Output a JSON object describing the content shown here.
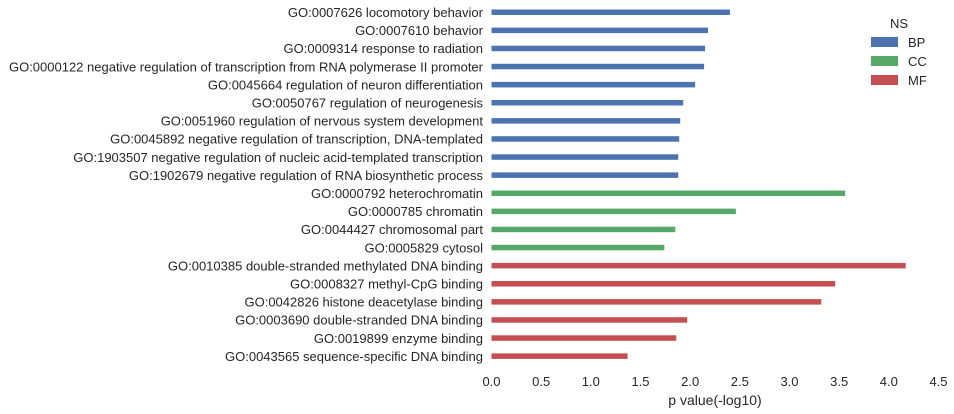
{
  "chart_data": {
    "type": "bar",
    "orientation": "horizontal",
    "xlabel": "p value(-log10)",
    "xlim": [
      0.0,
      4.5
    ],
    "xticks": [
      "0.0",
      "0.5",
      "1.0",
      "1.5",
      "2.0",
      "2.5",
      "3.0",
      "3.5",
      "4.0",
      "4.5"
    ],
    "grid": false,
    "legend": {
      "title": "NS",
      "placement": "top-right",
      "items": [
        {
          "name": "BP",
          "color": "#4C72B0"
        },
        {
          "name": "CC",
          "color": "#55A868"
        },
        {
          "name": "MF",
          "color": "#C44E52"
        }
      ]
    },
    "bars": [
      {
        "label": "GO:0007626 locomotory behavior",
        "value": 2.4,
        "ns": "BP"
      },
      {
        "label": "GO:0007610 behavior",
        "value": 2.18,
        "ns": "BP"
      },
      {
        "label": "GO:0009314 response to radiation",
        "value": 2.15,
        "ns": "BP"
      },
      {
        "label": "GO:0000122 negative regulation of transcription from RNA polymerase II promoter",
        "value": 2.14,
        "ns": "BP"
      },
      {
        "label": "GO:0045664 regulation of neuron differentiation",
        "value": 2.05,
        "ns": "BP"
      },
      {
        "label": "GO:0050767 regulation of neurogenesis",
        "value": 1.93,
        "ns": "BP"
      },
      {
        "label": "GO:0051960 regulation of nervous system development",
        "value": 1.9,
        "ns": "BP"
      },
      {
        "label": "GO:0045892 negative regulation of transcription, DNA-templated",
        "value": 1.89,
        "ns": "BP"
      },
      {
        "label": "GO:1903507 negative regulation of nucleic acid-templated transcription",
        "value": 1.88,
        "ns": "BP"
      },
      {
        "label": "GO:1902679 negative regulation of RNA biosynthetic process",
        "value": 1.88,
        "ns": "BP"
      },
      {
        "label": "GO:0000792 heterochromatin",
        "value": 3.56,
        "ns": "CC"
      },
      {
        "label": "GO:0000785 chromatin",
        "value": 2.46,
        "ns": "CC"
      },
      {
        "label": "GO:0044427 chromosomal part",
        "value": 1.85,
        "ns": "CC"
      },
      {
        "label": "GO:0005829 cytosol",
        "value": 1.74,
        "ns": "CC"
      },
      {
        "label": "GO:0010385 double-stranded methylated DNA binding",
        "value": 4.17,
        "ns": "MF"
      },
      {
        "label": "GO:0008327 methyl-CpG binding",
        "value": 3.46,
        "ns": "MF"
      },
      {
        "label": "GO:0042826 histone deacetylase binding",
        "value": 3.32,
        "ns": "MF"
      },
      {
        "label": "GO:0003690 double-stranded DNA binding",
        "value": 1.97,
        "ns": "MF"
      },
      {
        "label": "GO:0019899 enzyme binding",
        "value": 1.86,
        "ns": "MF"
      },
      {
        "label": "GO:0043565 sequence-specific DNA binding",
        "value": 1.37,
        "ns": "MF"
      }
    ]
  }
}
